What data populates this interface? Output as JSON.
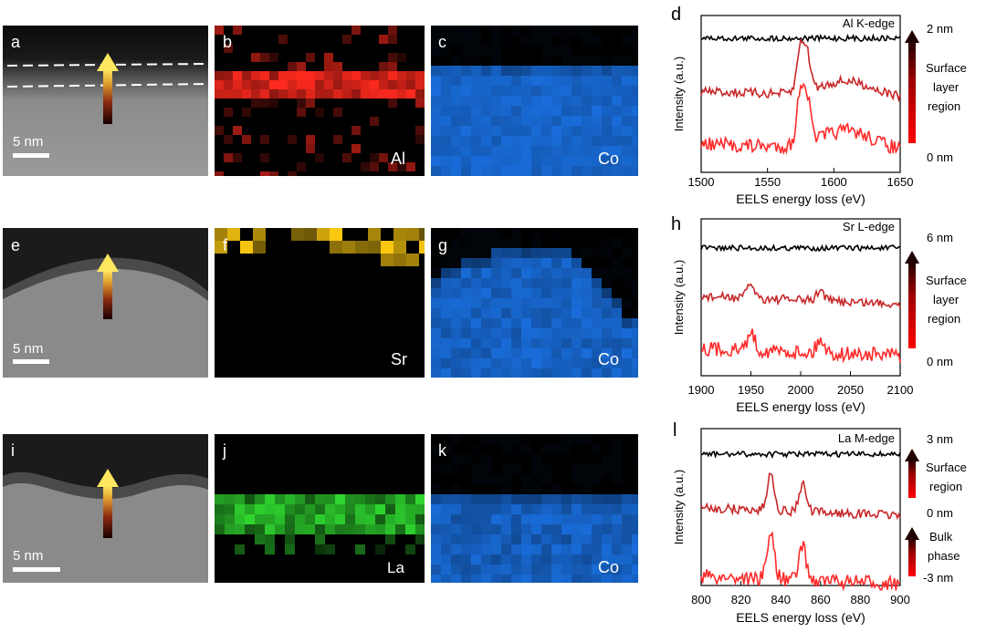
{
  "colors": {
    "al_map": "#ff2a1e",
    "sr_map": "#ffcc10",
    "la_map": "#30d830",
    "co_map": "#1d7fff",
    "black_trace": "#000000",
    "dark_red_trace": "#c8282a",
    "red_trace": "#ff2a2a"
  },
  "rows": [
    {
      "haadf_letter": "a",
      "scale_label": "5 nm",
      "map_letter": "b",
      "element_label": "Al",
      "co_letter": "c",
      "co_label": "Co",
      "spectrum": {
        "letter": "d",
        "edge_label": "Al K-edge",
        "xlabel": "EELS energy loss (eV)",
        "ylabel": "Intensity (a.u.)",
        "xlim": [
          1500,
          1650
        ],
        "xticks": [
          "1500",
          "1550",
          "1600",
          "1650"
        ],
        "peaks": [
          1575,
          1580
        ],
        "colorbar": {
          "top": "2 nm",
          "bottom": "0 nm",
          "labels": [
            "Surface",
            "layer",
            "region"
          ]
        }
      }
    },
    {
      "haadf_letter": "e",
      "scale_label": "5 nm",
      "map_letter": "f",
      "element_label": "Sr",
      "co_letter": "g",
      "co_label": "Co",
      "spectrum": {
        "letter": "h",
        "edge_label": "Sr L-edge",
        "xlabel": "EELS energy loss (eV)",
        "ylabel": "Intensity (a.u.)",
        "xlim": [
          1900,
          2100
        ],
        "xticks": [
          "1900",
          "1950",
          "2000",
          "2050",
          "2100"
        ],
        "peaks": [
          1950,
          2020
        ],
        "colorbar": {
          "top": "6 nm",
          "bottom": "0 nm",
          "labels": [
            "Surface",
            "layer",
            "region"
          ]
        }
      }
    },
    {
      "haadf_letter": "i",
      "scale_label": "5 nm",
      "map_letter": "j",
      "element_label": "La",
      "co_letter": "k",
      "co_label": "Co",
      "spectrum": {
        "letter": "l",
        "edge_label": "La M-edge",
        "xlabel": "EELS energy loss (eV)",
        "ylabel": "Intensity (a.u.)",
        "xlim": [
          800,
          900
        ],
        "xticks": [
          "800",
          "820",
          "840",
          "860",
          "880",
          "900"
        ],
        "peaks": [
          835,
          851
        ],
        "colorbar": {
          "top": "3 nm",
          "mid": "0 nm",
          "bottom": "-3 nm",
          "labels": [
            "Surface",
            "region"
          ],
          "labels2": [
            "Bulk",
            "phase"
          ]
        }
      }
    }
  ]
}
